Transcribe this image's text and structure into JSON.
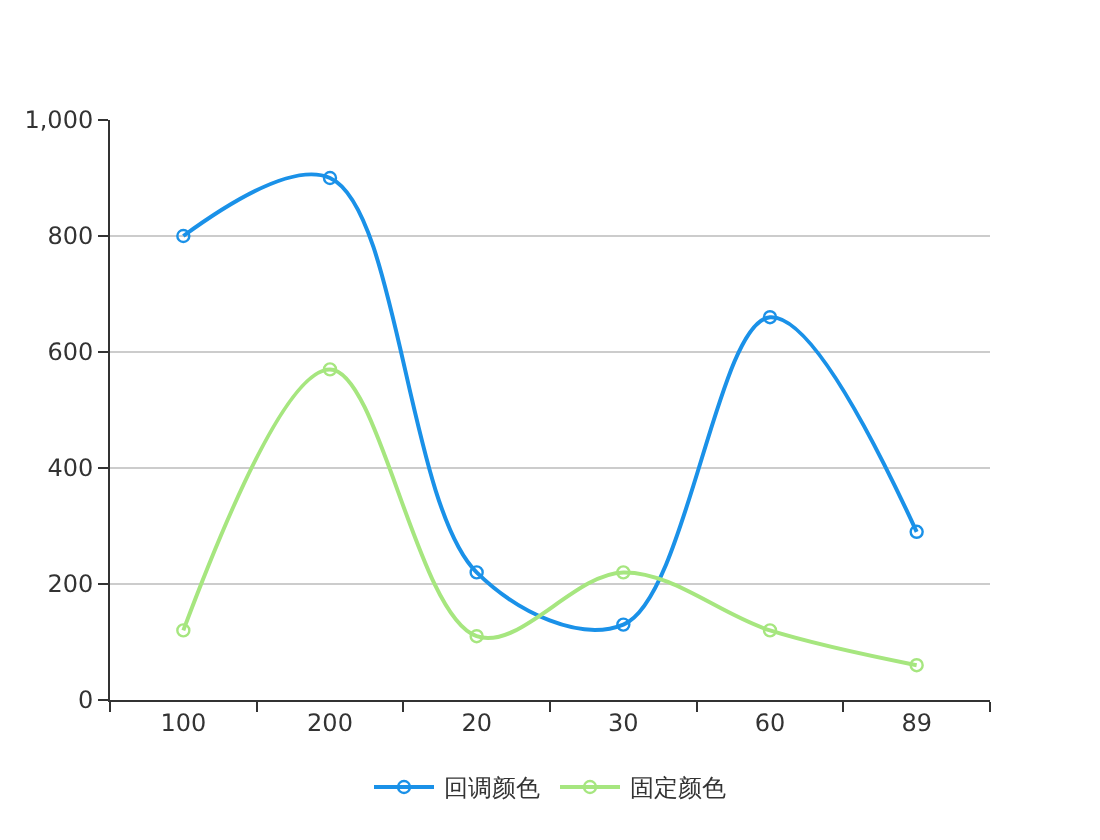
{
  "chart_data": {
    "type": "line",
    "categories": [
      "100",
      "200",
      "20",
      "30",
      "60",
      "89"
    ],
    "series": [
      {
        "name": "回调颜色",
        "color": "#1a91e8",
        "values": [
          800,
          900,
          220,
          130,
          660,
          290
        ]
      },
      {
        "name": "固定颜色",
        "color": "#a6e67f",
        "values": [
          120,
          570,
          110,
          220,
          120,
          60
        ]
      }
    ],
    "ylim": [
      0,
      1000
    ],
    "yticks": [
      0,
      200,
      400,
      600,
      800,
      {
        "value": 1000,
        "label": "1,000"
      }
    ],
    "grid": "y",
    "legend": "bottom",
    "marker": "circle",
    "line_style": "solid"
  }
}
